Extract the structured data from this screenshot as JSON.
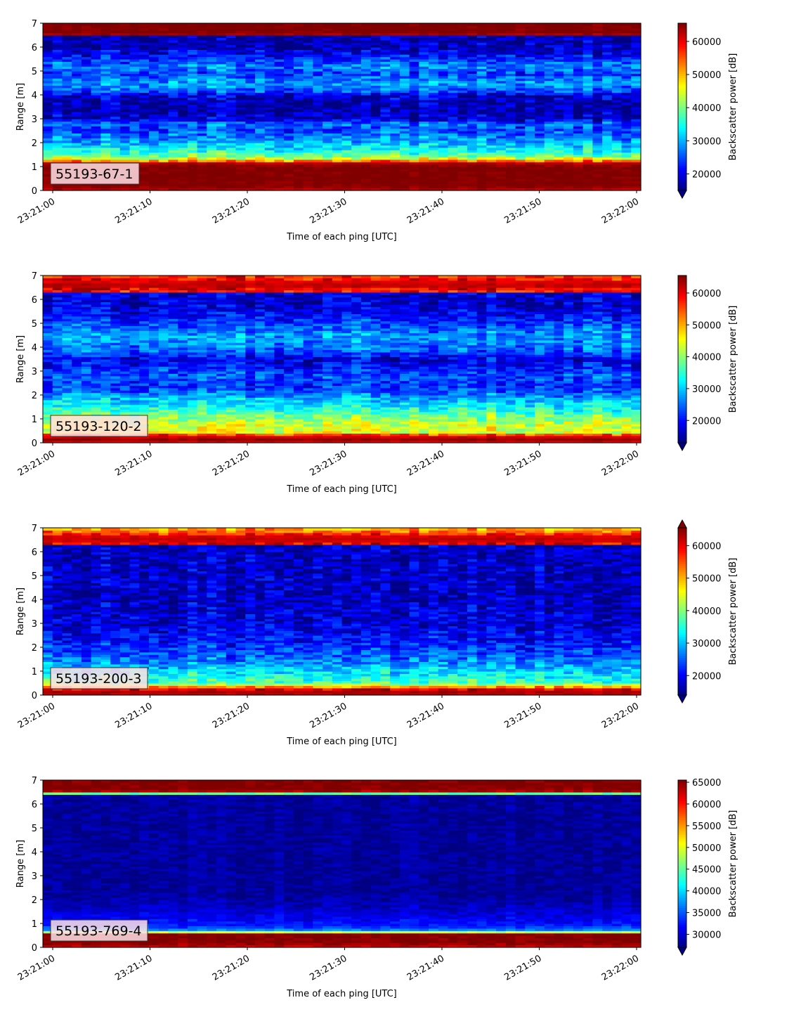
{
  "chart_data": [
    {
      "type": "heatmap",
      "label": "55193-67-1",
      "xlabel": "Time of each ping [UTC]",
      "ylabel": "Range [m]",
      "xticks": [
        "23:21:00",
        "23:21:10",
        "23:21:20",
        "23:21:30",
        "23:21:40",
        "23:21:50",
        "23:22:00"
      ],
      "ylim": [
        0,
        7
      ],
      "yticks": [
        "0",
        "1",
        "2",
        "3",
        "4",
        "5",
        "6",
        "7"
      ],
      "colorbar": {
        "label": "Backscatter power [dB]",
        "ticks": [
          "20000",
          "30000",
          "40000",
          "50000",
          "60000"
        ],
        "tick_values": [
          20000,
          30000,
          40000,
          50000,
          60000
        ],
        "range": [
          15000,
          65500
        ],
        "extend": "min"
      },
      "range_profile": [
        {
          "range": 0.0,
          "value": 61000
        },
        {
          "range": 0.1,
          "value": 64000
        },
        {
          "range": 0.25,
          "value": 65500
        },
        {
          "range": 1.0,
          "value": 65500
        },
        {
          "range": 1.18,
          "value": 62000
        },
        {
          "range": 1.3,
          "value": 47000
        },
        {
          "range": 1.45,
          "value": 40000
        },
        {
          "range": 1.7,
          "value": 34000
        },
        {
          "range": 2.0,
          "value": 30000
        },
        {
          "range": 2.3,
          "value": 27000
        },
        {
          "range": 2.6,
          "value": 24000
        },
        {
          "range": 2.8,
          "value": 27000
        },
        {
          "range": 3.0,
          "value": 19000
        },
        {
          "range": 3.5,
          "value": 16500
        },
        {
          "range": 4.0,
          "value": 19000
        },
        {
          "range": 4.15,
          "value": 25000
        },
        {
          "range": 4.5,
          "value": 29000
        },
        {
          "range": 4.9,
          "value": 24000
        },
        {
          "range": 5.2,
          "value": 28000
        },
        {
          "range": 5.6,
          "value": 22000
        },
        {
          "range": 6.0,
          "value": 17500
        },
        {
          "range": 6.45,
          "value": 17000
        },
        {
          "range": 6.5,
          "value": 62000
        },
        {
          "range": 6.6,
          "value": 65500
        },
        {
          "range": 7.0,
          "value": 65500
        }
      ]
    },
    {
      "type": "heatmap",
      "label": "55193-120-2",
      "xlabel": "Time of each ping [UTC]",
      "ylabel": "Range [m]",
      "xticks": [
        "23:21:00",
        "23:21:10",
        "23:21:20",
        "23:21:30",
        "23:21:40",
        "23:21:50",
        "23:22:00"
      ],
      "ylim": [
        0,
        7
      ],
      "yticks": [
        "0",
        "1",
        "2",
        "3",
        "4",
        "5",
        "6",
        "7"
      ],
      "colorbar": {
        "label": "Backscatter power [dB]",
        "ticks": [
          "20000",
          "30000",
          "40000",
          "50000",
          "60000"
        ],
        "tick_values": [
          20000,
          30000,
          40000,
          50000,
          60000
        ],
        "range": [
          13000,
          65500
        ],
        "extend": "min"
      },
      "range_profile": [
        {
          "range": 0.0,
          "value": 60000
        },
        {
          "range": 0.15,
          "value": 64000
        },
        {
          "range": 0.3,
          "value": 60000
        },
        {
          "range": 0.45,
          "value": 45000
        },
        {
          "range": 0.8,
          "value": 43000
        },
        {
          "range": 1.2,
          "value": 38000
        },
        {
          "range": 1.5,
          "value": 33000
        },
        {
          "range": 1.8,
          "value": 30000
        },
        {
          "range": 2.1,
          "value": 25000
        },
        {
          "range": 2.4,
          "value": 22000
        },
        {
          "range": 2.8,
          "value": 24000
        },
        {
          "range": 3.2,
          "value": 20000
        },
        {
          "range": 3.5,
          "value": 18000
        },
        {
          "range": 3.9,
          "value": 25000
        },
        {
          "range": 4.4,
          "value": 28000
        },
        {
          "range": 4.9,
          "value": 24000
        },
        {
          "range": 5.4,
          "value": 19000
        },
        {
          "range": 5.9,
          "value": 17000
        },
        {
          "range": 6.3,
          "value": 17500
        },
        {
          "range": 6.35,
          "value": 58000
        },
        {
          "range": 6.6,
          "value": 63000
        },
        {
          "range": 6.9,
          "value": 58000
        },
        {
          "range": 7.0,
          "value": 56000
        }
      ]
    },
    {
      "type": "heatmap",
      "label": "55193-200-3",
      "xlabel": "Time of each ping [UTC]",
      "ylabel": "Range [m]",
      "xticks": [
        "23:21:00",
        "23:21:10",
        "23:21:20",
        "23:21:30",
        "23:21:40",
        "23:21:50",
        "23:22:00"
      ],
      "ylim": [
        0,
        7
      ],
      "yticks": [
        "0",
        "1",
        "2",
        "3",
        "4",
        "5",
        "6",
        "7"
      ],
      "colorbar": {
        "label": "Backscatter power [dB]",
        "ticks": [
          "20000",
          "30000",
          "40000",
          "50000",
          "60000"
        ],
        "tick_values": [
          20000,
          30000,
          40000,
          50000,
          60000
        ],
        "range": [
          14000,
          65500
        ],
        "extend": "both"
      },
      "range_profile": [
        {
          "range": 0.0,
          "value": 62000
        },
        {
          "range": 0.2,
          "value": 64000
        },
        {
          "range": 0.35,
          "value": 52000
        },
        {
          "range": 0.5,
          "value": 37000
        },
        {
          "range": 0.9,
          "value": 33000
        },
        {
          "range": 1.3,
          "value": 28000
        },
        {
          "range": 1.8,
          "value": 24000
        },
        {
          "range": 2.3,
          "value": 21000
        },
        {
          "range": 3.0,
          "value": 18500
        },
        {
          "range": 4.0,
          "value": 17500
        },
        {
          "range": 5.0,
          "value": 17500
        },
        {
          "range": 6.3,
          "value": 17000
        },
        {
          "range": 6.35,
          "value": 60000
        },
        {
          "range": 6.6,
          "value": 63000
        },
        {
          "range": 6.8,
          "value": 55000
        },
        {
          "range": 7.0,
          "value": 50000
        }
      ]
    },
    {
      "type": "heatmap",
      "label": "55193-769-4",
      "xlabel": "Time of each ping [UTC]",
      "ylabel": "Range [m]",
      "xticks": [
        "23:21:00",
        "23:21:10",
        "23:21:20",
        "23:21:30",
        "23:21:40",
        "23:21:50",
        "23:22:00"
      ],
      "ylim": [
        0,
        7
      ],
      "yticks": [
        "0",
        "1",
        "2",
        "3",
        "4",
        "5",
        "6",
        "7"
      ],
      "colorbar": {
        "label": "Backscatter power [dB]",
        "ticks": [
          "30000",
          "35000",
          "40000",
          "45000",
          "50000",
          "55000",
          "60000",
          "65000"
        ],
        "tick_values": [
          30000,
          35000,
          40000,
          45000,
          50000,
          55000,
          60000,
          65000
        ],
        "range": [
          27000,
          65500
        ],
        "extend": "min"
      },
      "range_profile": [
        {
          "range": 0.0,
          "value": 62000
        },
        {
          "range": 0.2,
          "value": 65500
        },
        {
          "range": 0.6,
          "value": 65500
        },
        {
          "range": 0.68,
          "value": 38000
        },
        {
          "range": 0.9,
          "value": 33000
        },
        {
          "range": 1.3,
          "value": 31000
        },
        {
          "range": 1.8,
          "value": 29000
        },
        {
          "range": 2.3,
          "value": 28000
        },
        {
          "range": 6.4,
          "value": 28000
        },
        {
          "range": 6.5,
          "value": 62000
        },
        {
          "range": 6.6,
          "value": 65500
        },
        {
          "range": 7.0,
          "value": 65500
        }
      ]
    }
  ]
}
